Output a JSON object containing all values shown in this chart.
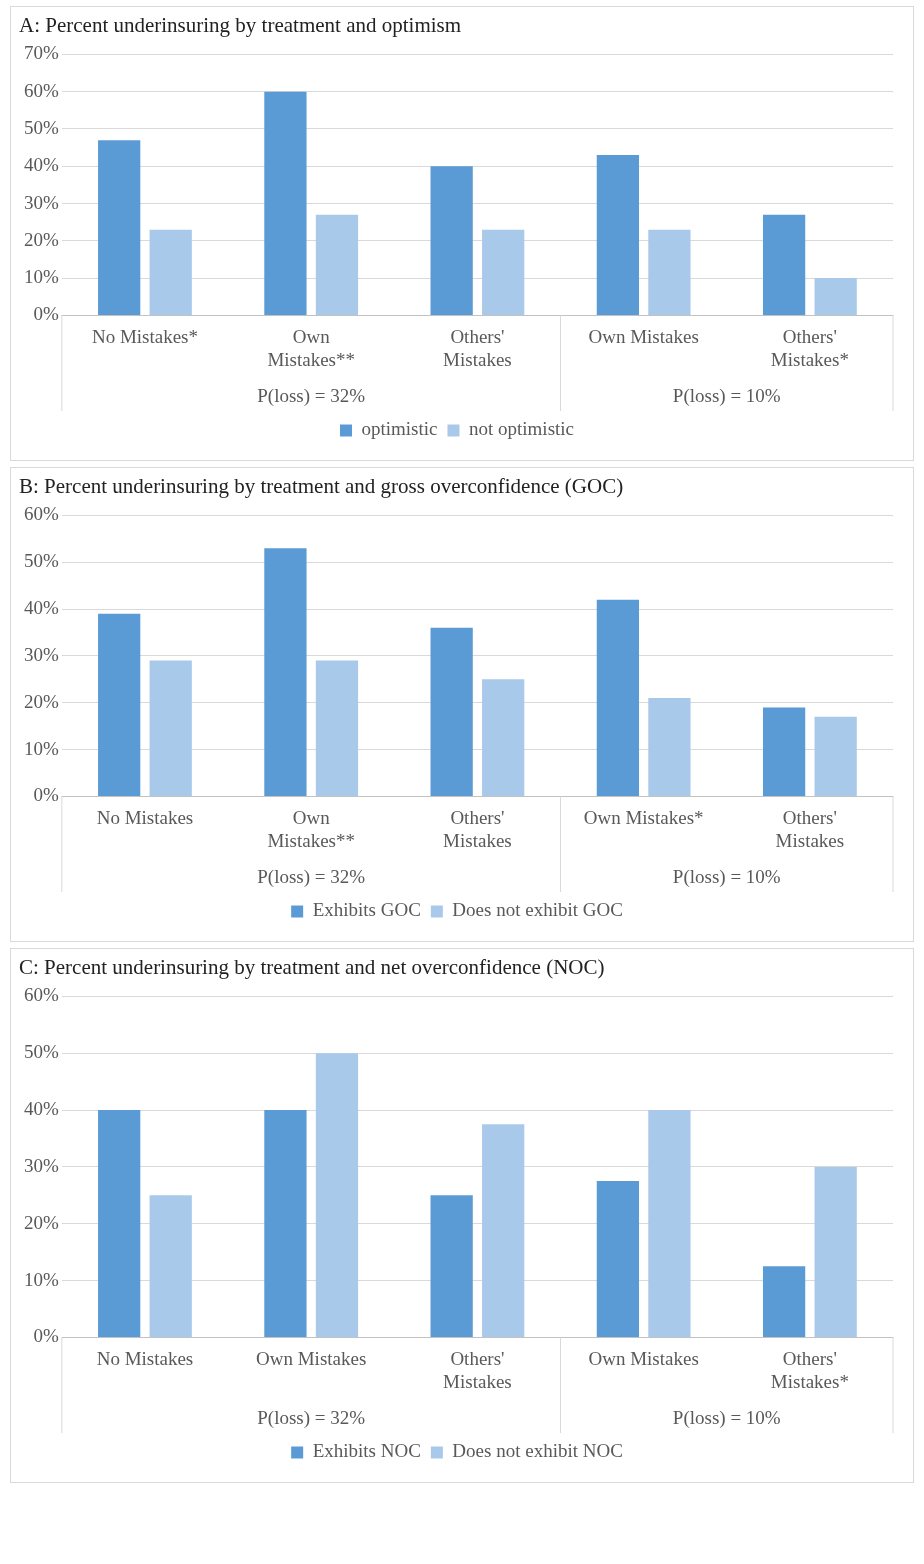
{
  "chart_data": [
    {
      "type": "bar",
      "title": "A: Percent underinsuring by treatment and optimism",
      "categories": [
        "No Mistakes*",
        "Own Mistakes**",
        "Others' Mistakes",
        "Own Mistakes",
        "Others' Mistakes*"
      ],
      "series": [
        {
          "name": "optimistic",
          "color": "#5b9bd5",
          "values": [
            47,
            60,
            40,
            43,
            27
          ]
        },
        {
          "name": "not optimistic",
          "color": "#a9c9ea",
          "values": [
            23,
            27,
            23,
            23,
            10
          ]
        }
      ],
      "ylim": [
        0,
        70
      ],
      "yticks": [
        {
          "value": 0,
          "label": "0%"
        },
        {
          "value": 10,
          "label": "10%"
        },
        {
          "value": 20,
          "label": "20%"
        },
        {
          "value": 30,
          "label": "30%"
        },
        {
          "value": 40,
          "label": "40%"
        },
        {
          "value": 50,
          "label": "50%"
        },
        {
          "value": 60,
          "label": "60%"
        },
        {
          "value": 70,
          "label": "70%"
        }
      ],
      "grid": "y",
      "legend": "bottom",
      "annotations": [
        "P(loss) = 32%",
        "P(loss) = 10%"
      ]
    },
    {
      "type": "bar",
      "title": "B: Percent underinsuring by treatment and gross overconfidence (GOC)",
      "categories": [
        "No Mistakes",
        "Own Mistakes**",
        "Others' Mistakes",
        "Own Mistakes*",
        "Others' Mistakes"
      ],
      "series": [
        {
          "name": "Exhibits GOC",
          "color": "#5b9bd5",
          "values": [
            39,
            53,
            36,
            42,
            19
          ]
        },
        {
          "name": "Does not exhibit GOC",
          "color": "#a9c9ea",
          "values": [
            29,
            29,
            25,
            21,
            17
          ]
        }
      ],
      "ylim": [
        0,
        60
      ],
      "yticks": [
        {
          "value": 0,
          "label": "0%"
        },
        {
          "value": 10,
          "label": "10%"
        },
        {
          "value": 20,
          "label": "20%"
        },
        {
          "value": 30,
          "label": "30%"
        },
        {
          "value": 40,
          "label": "40%"
        },
        {
          "value": 50,
          "label": "50%"
        },
        {
          "value": 60,
          "label": "60%"
        }
      ],
      "grid": "y",
      "legend": "bottom",
      "annotations": [
        "P(loss) = 32%",
        "P(loss) = 10%"
      ]
    },
    {
      "type": "bar",
      "title": "C: Percent underinsuring by treatment and net overconfidence (NOC)",
      "categories": [
        "No Mistakes",
        "Own Mistakes",
        "Others' Mistakes",
        "Own Mistakes",
        "Others' Mistakes*"
      ],
      "series": [
        {
          "name": "Exhibits NOC",
          "color": "#5b9bd5",
          "values": [
            40,
            40,
            25,
            27.5,
            12.5
          ]
        },
        {
          "name": "Does not exhibit NOC",
          "color": "#a9c9ea",
          "values": [
            25,
            50,
            37.5,
            40,
            30
          ]
        }
      ],
      "ylim": [
        0,
        60
      ],
      "yticks": [
        {
          "value": 0,
          "label": "0%"
        },
        {
          "value": 10,
          "label": "10%"
        },
        {
          "value": 20,
          "label": "20%"
        },
        {
          "value": 30,
          "label": "30%"
        },
        {
          "value": 40,
          "label": "40%"
        },
        {
          "value": 50,
          "label": "50%"
        },
        {
          "value": 60,
          "label": "60%"
        }
      ],
      "grid": "y",
      "legend": "bottom",
      "annotations": [
        "P(loss) = 32%",
        "P(loss) = 10%"
      ]
    }
  ]
}
